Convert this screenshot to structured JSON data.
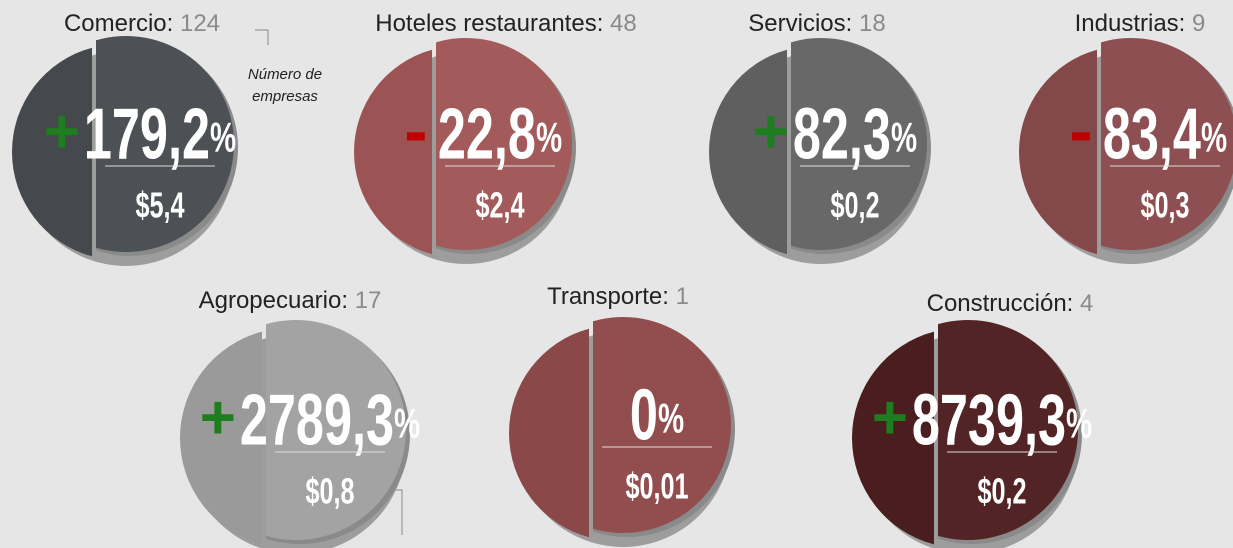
{
  "annotation": [
    "Número de",
    "empresas"
  ],
  "sectors": [
    {
      "name": "Comercio:",
      "count": "124",
      "sign": "+",
      "value": "179,2",
      "unit": "%",
      "amount": "$5,4"
    },
    {
      "name": "Hoteles restaurantes:",
      "count": "48",
      "sign": "-",
      "value": "22,8",
      "unit": "%",
      "amount": "$2,4"
    },
    {
      "name": "Servicios:",
      "count": "18",
      "sign": "+",
      "value": "82,3",
      "unit": "%",
      "amount": "$0,2"
    },
    {
      "name": "Industrias:",
      "count": "9",
      "sign": "-",
      "value": "83,4",
      "unit": "%",
      "amount": "$0,3"
    },
    {
      "name": "Agropecuario:",
      "count": "17",
      "sign": "+",
      "value": "2789,3",
      "unit": "%",
      "amount": "$0,8"
    },
    {
      "name": "Transporte:",
      "count": "1",
      "value": "0",
      "unit": "%",
      "amount": "$0,01"
    },
    {
      "name": "Construcción:",
      "count": "4",
      "sign": "+",
      "value": "8739,3",
      "unit": "%",
      "amount": "$0,2"
    }
  ]
}
